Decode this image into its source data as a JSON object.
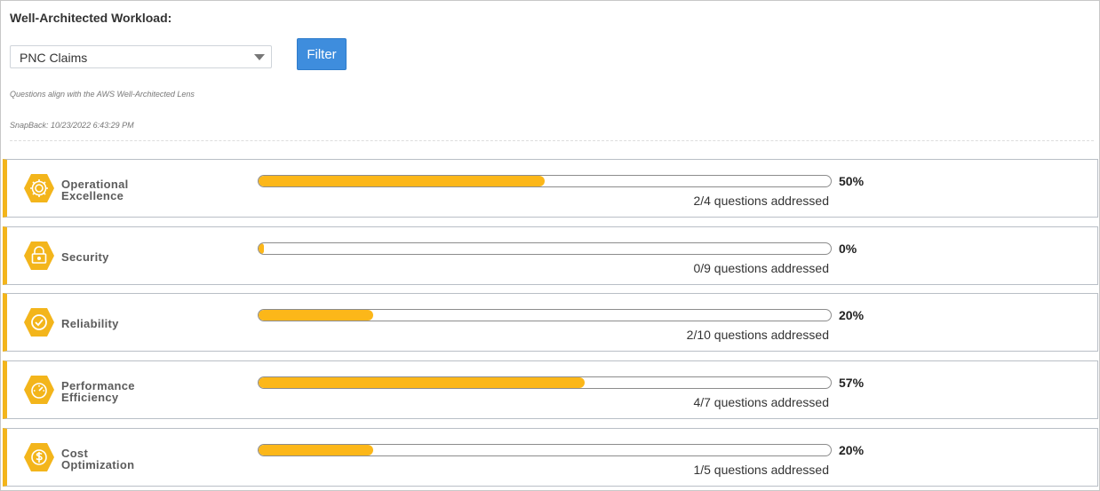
{
  "filter_panel": {
    "heading": "Well-Architected Workload:",
    "workload_select_value": "PNC Claims",
    "filter_button_label": "Filter",
    "lens_note": "Questions align with the AWS Well-Architected Lens",
    "snapback": "SnapBack: 10/23/2022 6:43:29 PM"
  },
  "colors": {
    "accent": "#f3b51b",
    "progress_fill": "#fcb719",
    "button": "#3e8ddd"
  },
  "pillars": [
    {
      "name_line1": "Operational",
      "name_line2": "Excellence",
      "icon": "gear-icon",
      "percent_label": "50%",
      "progress": 0.5,
      "questions": "2/4 questions addressed"
    },
    {
      "name_line1": "Security",
      "name_line2": "",
      "icon": "lock-icon",
      "percent_label": "0%",
      "progress": 0.0,
      "questions": "0/9 questions addressed"
    },
    {
      "name_line1": "Reliability",
      "name_line2": "",
      "icon": "checkmark-icon",
      "percent_label": "20%",
      "progress": 0.2,
      "questions": "2/10 questions addressed"
    },
    {
      "name_line1": "Performance",
      "name_line2": "Efficiency",
      "icon": "gauge-icon",
      "percent_label": "57%",
      "progress": 0.57,
      "questions": "4/7 questions addressed"
    },
    {
      "name_line1": "Cost",
      "name_line2": "Optimization",
      "icon": "dollar-icon",
      "percent_label": "20%",
      "progress": 0.2,
      "questions": "1/5 questions addressed"
    }
  ]
}
